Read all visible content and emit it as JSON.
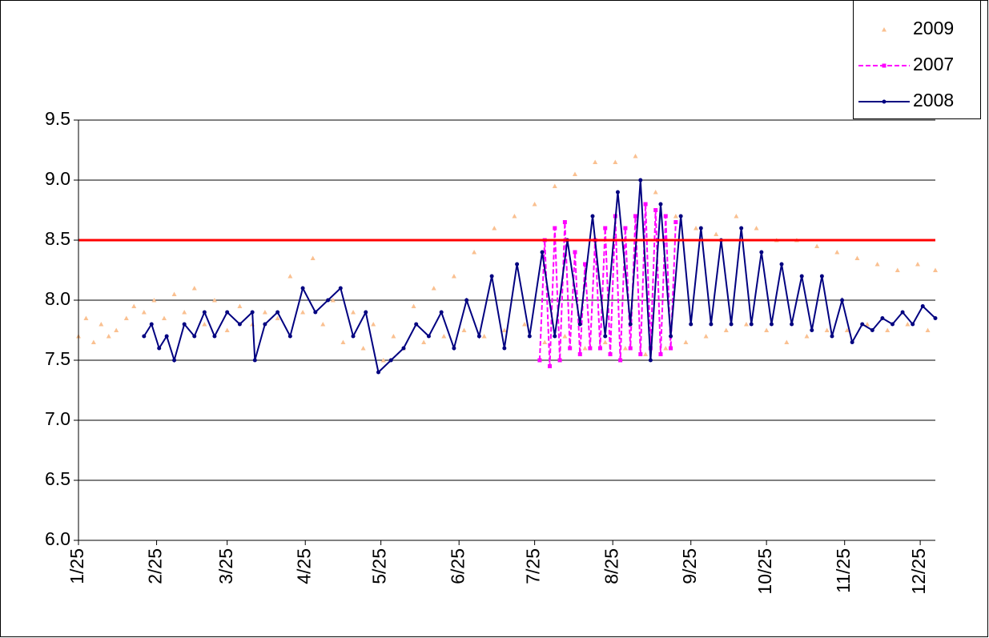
{
  "chart_data": {
    "type": "line",
    "xlim": [
      "1/25",
      "12/31"
    ],
    "xticks": [
      "1/25",
      "2/25",
      "3/25",
      "4/25",
      "5/25",
      "6/25",
      "7/25",
      "8/25",
      "9/25",
      "10/25",
      "11/25",
      "12/25"
    ],
    "ylim": [
      6,
      9.5
    ],
    "yticks": [
      {
        "value": 6,
        "label": "6.0"
      },
      {
        "value": 6.5,
        "label": "6.5"
      },
      {
        "value": 7,
        "label": "7.0"
      },
      {
        "value": 7.5,
        "label": "7.5"
      },
      {
        "value": 8,
        "label": "8.0"
      },
      {
        "value": 8.5,
        "label": "8.5"
      },
      {
        "value": 9,
        "label": "9.0"
      },
      {
        "value": 9.5,
        "label": "9.5"
      }
    ],
    "grid": true,
    "legend": "top-right",
    "hline": {
      "value": 8.5,
      "color": "#ff0000"
    },
    "series": [
      {
        "name": "2009",
        "color": "#fac090",
        "style": "markers",
        "x": [
          "1/25",
          "1/28",
          "1/31",
          "2/3",
          "2/6",
          "2/9",
          "2/13",
          "2/16",
          "2/20",
          "2/24",
          "2/28",
          "3/4",
          "3/8",
          "3/12",
          "3/16",
          "3/20",
          "3/25",
          "3/30",
          "4/4",
          "4/9",
          "4/14",
          "4/19",
          "4/24",
          "4/28",
          "5/2",
          "5/6",
          "5/10",
          "5/14",
          "5/18",
          "5/22",
          "5/26",
          "5/30",
          "6/3",
          "6/7",
          "6/11",
          "6/15",
          "6/19",
          "6/23",
          "6/27",
          "7/1",
          "7/5",
          "7/9",
          "7/13",
          "7/17",
          "7/21",
          "7/25",
          "7/29",
          "8/2",
          "8/6",
          "8/10",
          "8/14",
          "8/18",
          "8/22",
          "8/26",
          "8/30",
          "9/3",
          "9/7",
          "9/11",
          "9/15",
          "9/19",
          "9/23",
          "9/27",
          "10/1",
          "10/5",
          "10/9",
          "10/13",
          "10/17",
          "10/21",
          "10/25",
          "10/29",
          "11/2",
          "11/6",
          "11/10",
          "11/14",
          "11/18",
          "11/22",
          "11/26",
          "11/30",
          "12/4",
          "12/8",
          "12/12",
          "12/16",
          "12/20",
          "12/24",
          "12/28",
          "12/31"
        ],
        "values": [
          7.7,
          7.85,
          7.65,
          7.8,
          7.7,
          7.75,
          7.85,
          7.95,
          7.9,
          8.0,
          7.85,
          8.05,
          7.9,
          8.1,
          7.8,
          8.0,
          7.75,
          7.95,
          7.8,
          7.9,
          7.85,
          8.2,
          7.9,
          8.35,
          7.8,
          8.0,
          7.65,
          7.9,
          7.6,
          7.8,
          7.5,
          7.7,
          7.6,
          7.95,
          7.65,
          8.1,
          7.7,
          8.2,
          7.75,
          8.4,
          7.7,
          8.6,
          7.75,
          8.7,
          7.8,
          8.8,
          7.65,
          8.95,
          7.7,
          9.05,
          7.6,
          9.15,
          7.65,
          9.15,
          7.6,
          9.2,
          7.55,
          8.9,
          7.6,
          8.7,
          7.65,
          8.6,
          7.7,
          8.55,
          7.75,
          8.7,
          7.8,
          8.6,
          7.75,
          8.5,
          7.65,
          8.5,
          7.7,
          8.45,
          7.75,
          8.4,
          7.75,
          8.35,
          7.8,
          8.3,
          7.75,
          8.25,
          7.8,
          8.3,
          7.75,
          8.25
        ]
      },
      {
        "name": "2007",
        "color": "#ff00ff",
        "style": "dashed",
        "x": [
          "7/27",
          "7/29",
          "7/31",
          "8/2",
          "8/4",
          "8/6",
          "8/8",
          "8/10",
          "8/12",
          "8/14",
          "8/16",
          "8/18",
          "8/20",
          "8/22",
          "8/24",
          "8/26",
          "8/28",
          "8/30",
          "9/1",
          "9/3",
          "9/5",
          "9/7",
          "9/9",
          "9/11",
          "9/13",
          "9/15",
          "9/17",
          "9/19"
        ],
        "values": [
          7.5,
          8.5,
          7.45,
          8.6,
          7.5,
          8.65,
          7.6,
          8.4,
          7.55,
          8.3,
          7.6,
          8.5,
          7.6,
          8.6,
          7.55,
          8.7,
          7.5,
          8.6,
          7.6,
          8.7,
          7.55,
          8.8,
          7.6,
          8.75,
          7.55,
          8.7,
          7.6,
          8.65
        ]
      },
      {
        "name": "2008",
        "color": "#000080",
        "style": "solid",
        "x": [
          "2/20",
          "2/23",
          "2/26",
          "3/1",
          "3/4",
          "3/8",
          "3/12",
          "3/16",
          "3/20",
          "3/25",
          "3/30",
          "4/4",
          "4/5",
          "4/9",
          "4/14",
          "4/19",
          "4/24",
          "4/29",
          "5/4",
          "5/9",
          "5/14",
          "5/19",
          "5/24",
          "5/29",
          "6/3",
          "6/8",
          "6/13",
          "6/18",
          "6/23",
          "6/28",
          "7/3",
          "7/8",
          "7/13",
          "7/18",
          "7/23",
          "7/28",
          "8/2",
          "8/7",
          "8/12",
          "8/17",
          "8/22",
          "8/27",
          "9/1",
          "9/5",
          "9/9",
          "9/13",
          "9/17",
          "9/21",
          "9/25",
          "9/29",
          "10/3",
          "10/7",
          "10/11",
          "10/15",
          "10/19",
          "10/23",
          "10/27",
          "10/31",
          "11/4",
          "11/8",
          "11/12",
          "11/16",
          "11/20",
          "11/24",
          "11/28",
          "12/2",
          "12/6",
          "12/10",
          "12/14",
          "12/18",
          "12/22",
          "12/26",
          "12/31"
        ],
        "values": [
          7.7,
          7.8,
          7.6,
          7.7,
          7.5,
          7.8,
          7.7,
          7.9,
          7.7,
          7.9,
          7.8,
          7.9,
          7.5,
          7.8,
          7.9,
          7.7,
          8.1,
          7.9,
          8.0,
          8.1,
          7.7,
          7.9,
          7.4,
          7.5,
          7.6,
          7.8,
          7.7,
          7.9,
          7.6,
          8.0,
          7.7,
          8.2,
          7.6,
          8.3,
          7.7,
          8.4,
          7.7,
          8.5,
          7.8,
          8.7,
          7.7,
          8.9,
          7.8,
          9.0,
          7.5,
          8.8,
          7.7,
          8.7,
          7.8,
          8.6,
          7.8,
          8.5,
          7.8,
          8.6,
          7.8,
          8.4,
          7.8,
          8.3,
          7.8,
          8.2,
          7.75,
          8.2,
          7.7,
          8.0,
          7.65,
          7.8,
          7.75,
          7.85,
          7.8,
          7.9,
          7.8,
          7.95,
          7.85
        ]
      }
    ]
  }
}
